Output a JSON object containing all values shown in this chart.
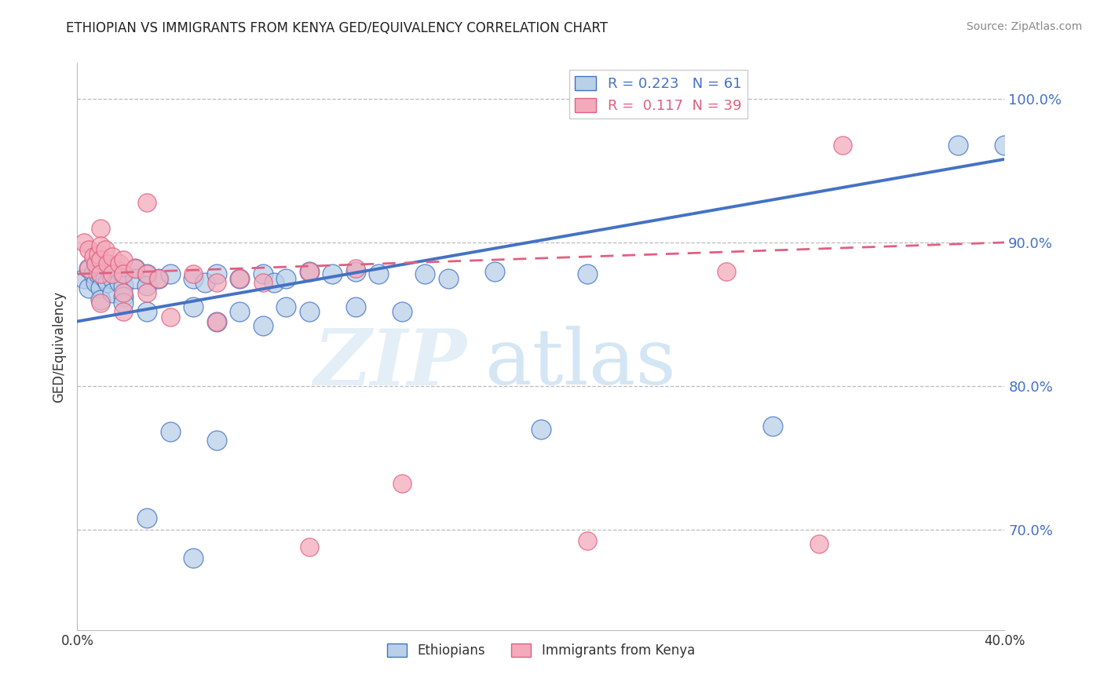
{
  "title": "ETHIOPIAN VS IMMIGRANTS FROM KENYA GED/EQUIVALENCY CORRELATION CHART",
  "source": "Source: ZipAtlas.com",
  "xlabel": "",
  "ylabel": "GED/Equivalency",
  "xlim": [
    0.0,
    0.4
  ],
  "ylim": [
    0.63,
    1.025
  ],
  "yticks": [
    0.7,
    0.8,
    0.9,
    1.0
  ],
  "ytick_labels": [
    "70.0%",
    "80.0%",
    "90.0%",
    "100.0%"
  ],
  "xticks": [
    0.0,
    0.1,
    0.2,
    0.3,
    0.4
  ],
  "xtick_labels": [
    "0.0%",
    "",
    "",
    "",
    "40.0%"
  ],
  "legend_r1": "R = 0.223",
  "legend_n1": "N = 61",
  "legend_r2": "R =  0.117",
  "legend_n2": "N = 39",
  "color_blue": "#B8D0E8",
  "color_pink": "#F4AABB",
  "line_blue": "#4472C4",
  "line_pink": "#E06080",
  "watermark_zip": "ZIP",
  "watermark_atlas": "atlas",
  "scatter_blue": [
    [
      0.003,
      0.875
    ],
    [
      0.005,
      0.882
    ],
    [
      0.005,
      0.868
    ],
    [
      0.007,
      0.878
    ],
    [
      0.008,
      0.885
    ],
    [
      0.008,
      0.872
    ],
    [
      0.009,
      0.878
    ],
    [
      0.01,
      0.888
    ],
    [
      0.01,
      0.878
    ],
    [
      0.01,
      0.868
    ],
    [
      0.01,
      0.86
    ],
    [
      0.012,
      0.882
    ],
    [
      0.012,
      0.875
    ],
    [
      0.013,
      0.872
    ],
    [
      0.015,
      0.882
    ],
    [
      0.015,
      0.875
    ],
    [
      0.015,
      0.865
    ],
    [
      0.018,
      0.88
    ],
    [
      0.018,
      0.872
    ],
    [
      0.02,
      0.878
    ],
    [
      0.02,
      0.87
    ],
    [
      0.02,
      0.862
    ],
    [
      0.025,
      0.882
    ],
    [
      0.025,
      0.875
    ],
    [
      0.03,
      0.878
    ],
    [
      0.03,
      0.87
    ],
    [
      0.035,
      0.875
    ],
    [
      0.04,
      0.878
    ],
    [
      0.05,
      0.875
    ],
    [
      0.055,
      0.872
    ],
    [
      0.06,
      0.878
    ],
    [
      0.07,
      0.875
    ],
    [
      0.08,
      0.878
    ],
    [
      0.085,
      0.872
    ],
    [
      0.09,
      0.875
    ],
    [
      0.1,
      0.88
    ],
    [
      0.11,
      0.878
    ],
    [
      0.12,
      0.88
    ],
    [
      0.13,
      0.878
    ],
    [
      0.15,
      0.878
    ],
    [
      0.16,
      0.875
    ],
    [
      0.18,
      0.88
    ],
    [
      0.22,
      0.878
    ],
    [
      0.02,
      0.858
    ],
    [
      0.03,
      0.852
    ],
    [
      0.05,
      0.855
    ],
    [
      0.07,
      0.852
    ],
    [
      0.09,
      0.855
    ],
    [
      0.1,
      0.852
    ],
    [
      0.12,
      0.855
    ],
    [
      0.14,
      0.852
    ],
    [
      0.06,
      0.845
    ],
    [
      0.08,
      0.842
    ],
    [
      0.04,
      0.768
    ],
    [
      0.06,
      0.762
    ],
    [
      0.03,
      0.708
    ],
    [
      0.05,
      0.68
    ],
    [
      0.2,
      0.77
    ],
    [
      0.3,
      0.772
    ],
    [
      0.38,
      0.968
    ],
    [
      0.4,
      0.968
    ]
  ],
  "scatter_pink": [
    [
      0.003,
      0.9
    ],
    [
      0.005,
      0.895
    ],
    [
      0.005,
      0.882
    ],
    [
      0.007,
      0.89
    ],
    [
      0.008,
      0.885
    ],
    [
      0.009,
      0.892
    ],
    [
      0.01,
      0.91
    ],
    [
      0.01,
      0.898
    ],
    [
      0.01,
      0.888
    ],
    [
      0.01,
      0.878
    ],
    [
      0.012,
      0.895
    ],
    [
      0.013,
      0.885
    ],
    [
      0.015,
      0.89
    ],
    [
      0.015,
      0.878
    ],
    [
      0.018,
      0.885
    ],
    [
      0.02,
      0.888
    ],
    [
      0.02,
      0.878
    ],
    [
      0.02,
      0.865
    ],
    [
      0.025,
      0.882
    ],
    [
      0.03,
      0.878
    ],
    [
      0.03,
      0.865
    ],
    [
      0.035,
      0.875
    ],
    [
      0.05,
      0.878
    ],
    [
      0.06,
      0.872
    ],
    [
      0.07,
      0.875
    ],
    [
      0.08,
      0.872
    ],
    [
      0.1,
      0.88
    ],
    [
      0.12,
      0.882
    ],
    [
      0.01,
      0.858
    ],
    [
      0.02,
      0.852
    ],
    [
      0.04,
      0.848
    ],
    [
      0.06,
      0.845
    ],
    [
      0.03,
      0.928
    ],
    [
      0.28,
      0.88
    ],
    [
      0.33,
      0.968
    ],
    [
      0.32,
      0.69
    ],
    [
      0.22,
      0.692
    ],
    [
      0.14,
      0.732
    ],
    [
      0.1,
      0.688
    ]
  ],
  "blue_line_x": [
    0.0,
    0.4
  ],
  "blue_line_y": [
    0.845,
    0.958
  ],
  "pink_line_x": [
    0.0,
    0.4
  ],
  "pink_line_y": [
    0.878,
    0.9
  ]
}
